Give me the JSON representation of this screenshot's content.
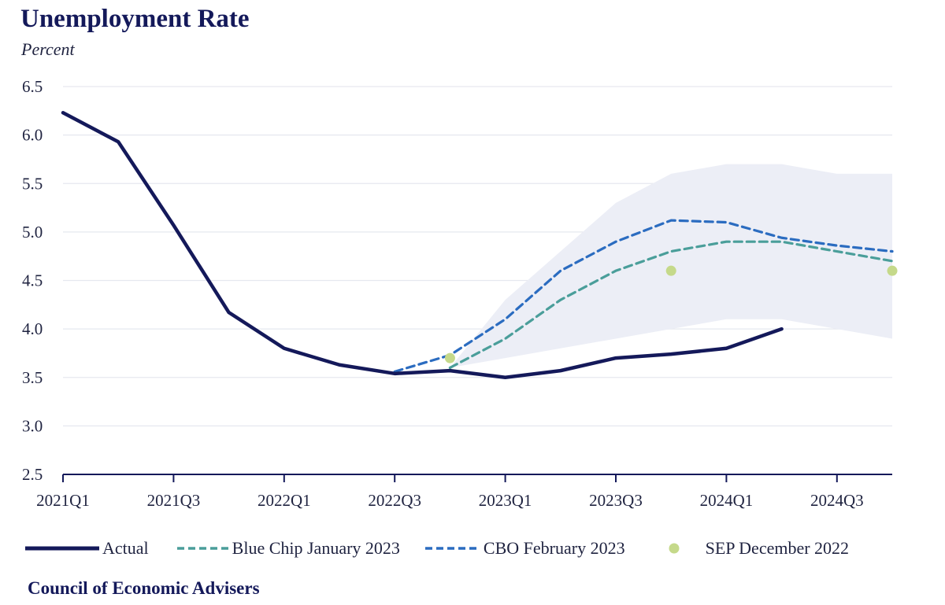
{
  "header": {
    "title": "Unemployment Rate",
    "subtitle": "Percent"
  },
  "footer": {
    "source": "Council of Economic Advisers"
  },
  "colors": {
    "actual": "#14195a",
    "blue_chip": "#4a9e9a",
    "cbo": "#2b6cc0",
    "sep": "#c5d98a",
    "band": "#eceef6",
    "grid": "#e6e8ef",
    "axis": "#14195a"
  },
  "chart_data": {
    "type": "line",
    "title": "Unemployment Rate",
    "ylabel": "Percent",
    "ylim": [
      2.5,
      6.5
    ],
    "yticks": [
      "2.5",
      "3.0",
      "3.5",
      "4.0",
      "4.5",
      "5.0",
      "5.5",
      "6.0",
      "6.5"
    ],
    "categories": [
      "2021Q1",
      "2021Q2",
      "2021Q3",
      "2021Q4",
      "2022Q1",
      "2022Q2",
      "2022Q3",
      "2022Q4",
      "2023Q1",
      "2023Q2",
      "2023Q3",
      "2023Q4",
      "2024Q1",
      "2024Q2",
      "2024Q3",
      "2024Q4"
    ],
    "xtick_labels": [
      "2021Q1",
      "2021Q3",
      "2022Q1",
      "2022Q3",
      "2023Q1",
      "2023Q3",
      "2024Q1",
      "2024Q3"
    ],
    "grid": true,
    "legend_position": "bottom",
    "series": [
      {
        "name": "Actual",
        "style": "solid",
        "values": [
          6.23,
          5.93,
          5.07,
          4.17,
          3.8,
          3.63,
          3.54,
          3.57,
          3.5,
          3.57,
          3.7,
          3.74,
          3.8,
          4.0,
          null,
          null
        ]
      },
      {
        "name": "Blue Chip January 2023",
        "style": "dashed",
        "values": [
          null,
          null,
          null,
          null,
          null,
          null,
          null,
          3.6,
          3.9,
          4.3,
          4.6,
          4.8,
          4.9,
          4.9,
          4.8,
          4.7
        ]
      },
      {
        "name": "CBO February 2023",
        "style": "dashed",
        "values": [
          null,
          null,
          null,
          null,
          null,
          null,
          3.56,
          3.73,
          4.1,
          4.6,
          4.9,
          5.12,
          5.1,
          4.94,
          4.86,
          4.8
        ]
      },
      {
        "name": "SEP December 2022",
        "style": "points",
        "values": [
          null,
          null,
          null,
          null,
          null,
          null,
          null,
          3.7,
          null,
          null,
          null,
          4.6,
          null,
          null,
          null,
          4.6
        ]
      }
    ],
    "band": {
      "upper": [
        null,
        null,
        null,
        null,
        null,
        null,
        null,
        3.6,
        4.3,
        4.8,
        5.3,
        5.6,
        5.7,
        5.7,
        5.6,
        5.6
      ],
      "lower": [
        null,
        null,
        null,
        null,
        null,
        null,
        null,
        3.6,
        3.7,
        3.8,
        3.9,
        4.0,
        4.1,
        4.1,
        4.0,
        3.9
      ]
    }
  }
}
